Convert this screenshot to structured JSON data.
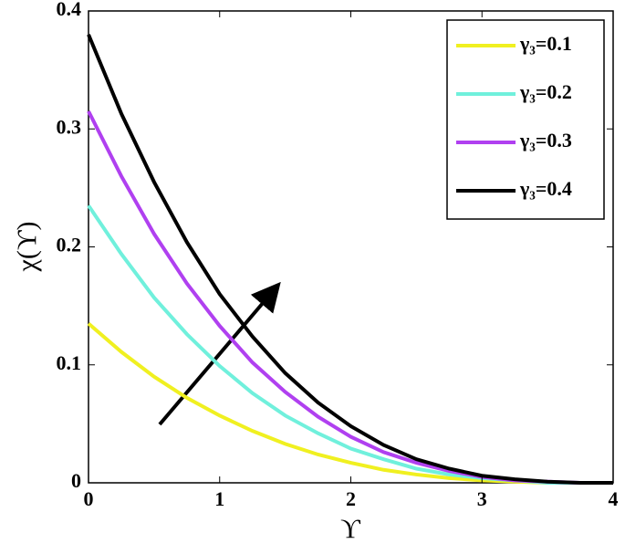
{
  "chart_data": {
    "type": "line",
    "xlabel": "ϒ",
    "ylabel": "χ(ϒ)",
    "x": [
      0,
      0.25,
      0.5,
      0.75,
      1,
      1.25,
      1.5,
      1.75,
      2,
      2.25,
      2.5,
      2.75,
      3,
      3.25,
      3.5,
      3.75,
      4
    ],
    "series": [
      {
        "name": "γ₃=0.1",
        "color": "#f0f020",
        "values": [
          0.135,
          0.111,
          0.09,
          0.072,
          0.057,
          0.044,
          0.033,
          0.024,
          0.017,
          0.011,
          0.007,
          0.004,
          0.002,
          0.001,
          0,
          0,
          0
        ]
      },
      {
        "name": "γ₃=0.2",
        "color": "#70f0dc",
        "values": [
          0.235,
          0.194,
          0.157,
          0.126,
          0.099,
          0.076,
          0.057,
          0.042,
          0.029,
          0.02,
          0.012,
          0.007,
          0.004,
          0.002,
          0,
          0,
          0
        ]
      },
      {
        "name": "γ₃=0.3",
        "color": "#b040f0",
        "values": [
          0.315,
          0.26,
          0.211,
          0.169,
          0.133,
          0.102,
          0.077,
          0.056,
          0.039,
          0.026,
          0.017,
          0.01,
          0.005,
          0.002,
          0.001,
          0,
          0
        ]
      },
      {
        "name": "γ₃=0.4",
        "color": "#000000",
        "values": [
          0.38,
          0.313,
          0.255,
          0.204,
          0.16,
          0.124,
          0.093,
          0.068,
          0.048,
          0.032,
          0.02,
          0.012,
          0.006,
          0.003,
          0.001,
          0,
          0
        ]
      }
    ],
    "xlim": [
      0,
      4
    ],
    "xticks": [
      0,
      1,
      2,
      3,
      4
    ],
    "ylim": [
      0,
      0.4
    ],
    "yticks": [
      0,
      0.1,
      0.2,
      0.3,
      0.4
    ],
    "grid": false,
    "legend": "upper right"
  }
}
